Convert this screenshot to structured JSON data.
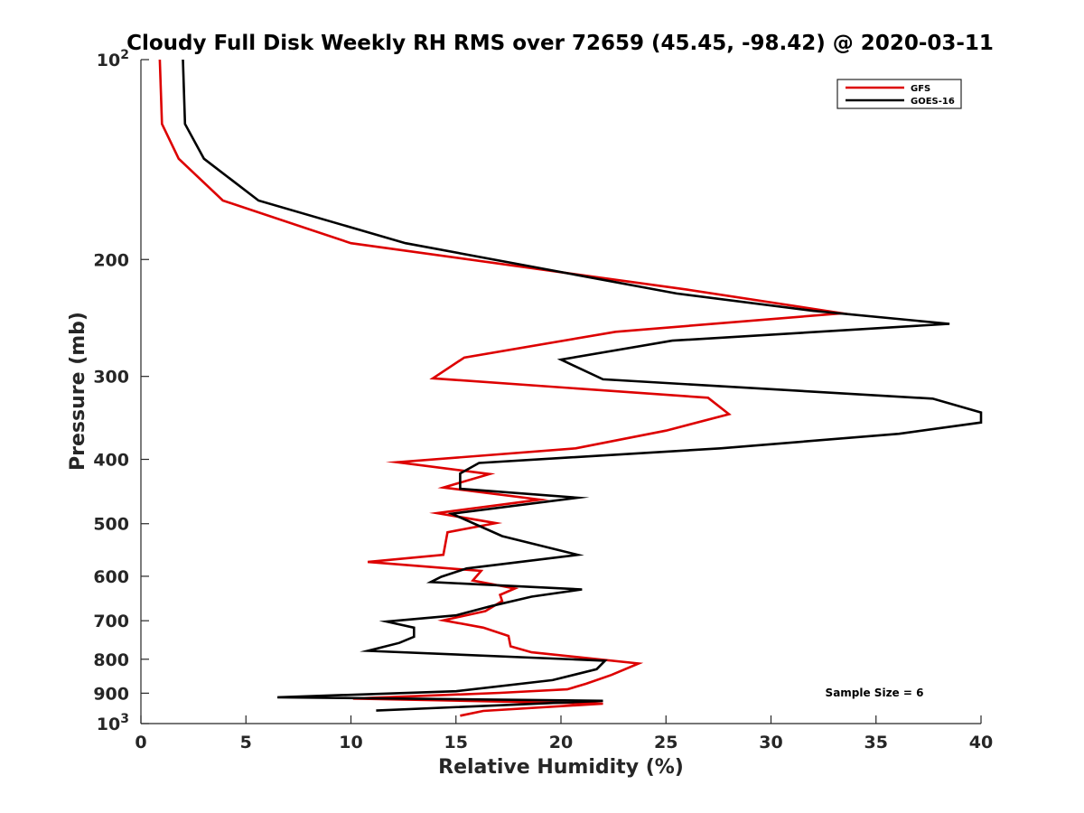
{
  "chart_data": {
    "type": "line",
    "title": "Cloudy Full Disk Weekly RH RMS over 72659 (45.45, -98.42) @ 2020-03-11",
    "xlabel": "Relative Humidity (%)",
    "ylabel": "Pressure (mb)",
    "xlim": [
      0,
      40
    ],
    "ylim": [
      100,
      1000
    ],
    "y_scale": "log",
    "y_reversed": true,
    "x_ticks": [
      0,
      5,
      10,
      15,
      20,
      25,
      30,
      35,
      40
    ],
    "y_ticks": [
      {
        "value": 100,
        "base": "10",
        "exp": "2"
      },
      {
        "value": 200,
        "label": "200"
      },
      {
        "value": 300,
        "label": "300"
      },
      {
        "value": 400,
        "label": "400"
      },
      {
        "value": 500,
        "label": "500"
      },
      {
        "value": 600,
        "label": "600"
      },
      {
        "value": 700,
        "label": "700"
      },
      {
        "value": 800,
        "label": "800"
      },
      {
        "value": 900,
        "label": "900"
      },
      {
        "value": 1000,
        "base": "10",
        "exp": "3"
      }
    ],
    "grid": false,
    "legend": "top-right",
    "annotation": "Sample Size = 6",
    "series": [
      {
        "name": "GFS",
        "color": "#dd0000",
        "points": [
          [
            0.9,
            100
          ],
          [
            1.0,
            125
          ],
          [
            1.8,
            141
          ],
          [
            3.9,
            163
          ],
          [
            10.0,
            189
          ],
          [
            26.0,
            222
          ],
          [
            33.4,
            241
          ],
          [
            22.6,
            257
          ],
          [
            15.4,
            281
          ],
          [
            13.9,
            302
          ],
          [
            27.0,
            323
          ],
          [
            28.0,
            342
          ],
          [
            25.0,
            362
          ],
          [
            20.7,
            385
          ],
          [
            12.2,
            404
          ],
          [
            16.6,
            421
          ],
          [
            14.4,
            441
          ],
          [
            19.0,
            460
          ],
          [
            14.1,
            482
          ],
          [
            16.9,
            499
          ],
          [
            14.6,
            515
          ],
          [
            14.4,
            557
          ],
          [
            10.8,
            571
          ],
          [
            16.2,
            589
          ],
          [
            15.8,
            609
          ],
          [
            17.8,
            626
          ],
          [
            17.1,
            640
          ],
          [
            17.2,
            654
          ],
          [
            16.4,
            677
          ],
          [
            14.4,
            699
          ],
          [
            16.3,
            717
          ],
          [
            17.5,
            738
          ],
          [
            17.6,
            765
          ],
          [
            18.6,
            781
          ],
          [
            23.7,
            812
          ],
          [
            22.4,
            845
          ],
          [
            21.2,
            871
          ],
          [
            20.3,
            888
          ],
          [
            17.1,
            899
          ],
          [
            10.1,
            917
          ],
          [
            22.0,
            933
          ],
          [
            16.3,
            957
          ],
          [
            15.2,
            973
          ]
        ]
      },
      {
        "name": "GOES-16",
        "color": "#000000",
        "points": [
          [
            2.0,
            100
          ],
          [
            2.1,
            125
          ],
          [
            3.0,
            141
          ],
          [
            5.6,
            163
          ],
          [
            12.6,
            189
          ],
          [
            25.5,
            225
          ],
          [
            32.0,
            239
          ],
          [
            38.5,
            250
          ],
          [
            25.3,
            265
          ],
          [
            20.0,
            283
          ],
          [
            22.0,
            303
          ],
          [
            37.7,
            324
          ],
          [
            40.0,
            340
          ],
          [
            40.0,
            352
          ],
          [
            36.1,
            366
          ],
          [
            27.6,
            385
          ],
          [
            16.1,
            405
          ],
          [
            15.2,
            420
          ],
          [
            15.2,
            443
          ],
          [
            20.8,
            457
          ],
          [
            14.8,
            483
          ],
          [
            17.2,
            522
          ],
          [
            20.8,
            557
          ],
          [
            15.5,
            584
          ],
          [
            14.3,
            601
          ],
          [
            13.8,
            612
          ],
          [
            21.0,
            628
          ],
          [
            18.6,
            644
          ],
          [
            16.7,
            665
          ],
          [
            15.0,
            687
          ],
          [
            11.7,
            702
          ],
          [
            13.0,
            717
          ],
          [
            13.0,
            740
          ],
          [
            12.3,
            756
          ],
          [
            10.8,
            777
          ],
          [
            22.1,
            804
          ],
          [
            21.7,
            828
          ],
          [
            19.6,
            860
          ],
          [
            15.0,
            894
          ],
          [
            6.5,
            913
          ],
          [
            22.0,
            924
          ],
          [
            11.2,
            956
          ]
        ]
      }
    ]
  }
}
